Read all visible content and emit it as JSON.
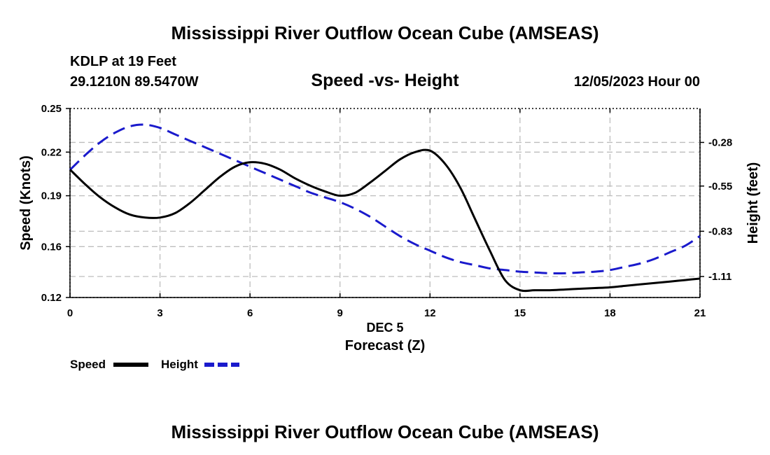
{
  "title": "Mississippi River Outflow Ocean Cube (AMSEAS)",
  "footer_title": "Mississippi River Outflow Ocean Cube (AMSEAS)",
  "station": {
    "name": "KDLP at 19 Feet",
    "coords": "29.1210N  89.5470W"
  },
  "subtitle": "Speed -vs- Height",
  "date_label": "12/05/2023 Hour 00",
  "legend": {
    "speed": "Speed",
    "height": "Height"
  },
  "colors": {
    "speed": "#000000",
    "height": "#1a1acc",
    "grid": "#bdbdbd"
  },
  "chart_data": {
    "type": "line",
    "title": "Speed -vs- Height",
    "xlabel_line1": "DEC 5",
    "xlabel": "Forecast (Z)",
    "ylabel": "Speed (Knots)",
    "y2label": "Height (feet)",
    "xlim": [
      0,
      21
    ],
    "ylim": [
      0.12,
      0.25
    ],
    "y2lim": [
      -1.24,
      -0.07
    ],
    "x_ticks": [
      "0",
      "3",
      "6",
      "9",
      "12",
      "15",
      "18",
      "21"
    ],
    "x_tick_values": [
      0,
      3,
      6,
      9,
      12,
      15,
      18,
      21
    ],
    "y_ticks": [
      "0.12",
      "0.16",
      "0.19",
      "0.22",
      "0.25"
    ],
    "y_tick_values": [
      0.12,
      0.155,
      0.19,
      0.22,
      0.25
    ],
    "y2_ticks": [
      "-1.11",
      "-0.83",
      "-0.55",
      "-0.28"
    ],
    "y2_tick_values": [
      -1.11,
      -0.83,
      -0.55,
      -0.28
    ],
    "series": [
      {
        "name": "Speed",
        "axis": "left",
        "x": [
          0,
          0.5,
          1,
          1.5,
          2,
          2.5,
          3,
          3.5,
          4,
          4.5,
          5,
          5.5,
          6,
          6.5,
          7,
          7.5,
          8,
          8.5,
          9,
          9.5,
          10,
          10.5,
          11,
          11.5,
          12,
          12.5,
          13,
          13.5,
          14,
          14.5,
          15,
          15.5,
          16,
          16.5,
          17,
          17.5,
          18,
          18.5,
          19,
          19.5,
          20,
          20.5,
          21
        ],
        "values": [
          0.208,
          0.198,
          0.189,
          0.182,
          0.177,
          0.175,
          0.175,
          0.178,
          0.185,
          0.194,
          0.203,
          0.21,
          0.213,
          0.212,
          0.208,
          0.202,
          0.197,
          0.193,
          0.19,
          0.192,
          0.199,
          0.207,
          0.215,
          0.22,
          0.221,
          0.212,
          0.196,
          0.174,
          0.152,
          0.132,
          0.125,
          0.125,
          0.125,
          0.1255,
          0.126,
          0.1265,
          0.127,
          0.128,
          0.129,
          0.13,
          0.131,
          0.132,
          0.133
        ]
      },
      {
        "name": "Height",
        "axis": "right",
        "x": [
          0,
          0.5,
          1,
          1.5,
          2,
          2.5,
          3,
          3.5,
          4,
          4.5,
          5,
          5.5,
          6,
          6.5,
          7,
          7.5,
          8,
          8.5,
          9,
          9.5,
          10,
          10.5,
          11,
          11.5,
          12,
          12.5,
          13,
          13.5,
          14,
          14.5,
          15,
          15.5,
          16,
          16.5,
          17,
          17.5,
          18,
          18.5,
          19,
          19.5,
          20,
          20.5,
          21
        ],
        "values": [
          -0.45,
          -0.36,
          -0.28,
          -0.22,
          -0.18,
          -0.17,
          -0.19,
          -0.23,
          -0.27,
          -0.31,
          -0.35,
          -0.39,
          -0.43,
          -0.47,
          -0.51,
          -0.55,
          -0.59,
          -0.62,
          -0.65,
          -0.69,
          -0.74,
          -0.8,
          -0.86,
          -0.91,
          -0.95,
          -0.99,
          -1.02,
          -1.04,
          -1.06,
          -1.07,
          -1.08,
          -1.085,
          -1.09,
          -1.09,
          -1.085,
          -1.08,
          -1.07,
          -1.05,
          -1.03,
          -1.0,
          -0.96,
          -0.92,
          -0.86
        ]
      }
    ]
  }
}
